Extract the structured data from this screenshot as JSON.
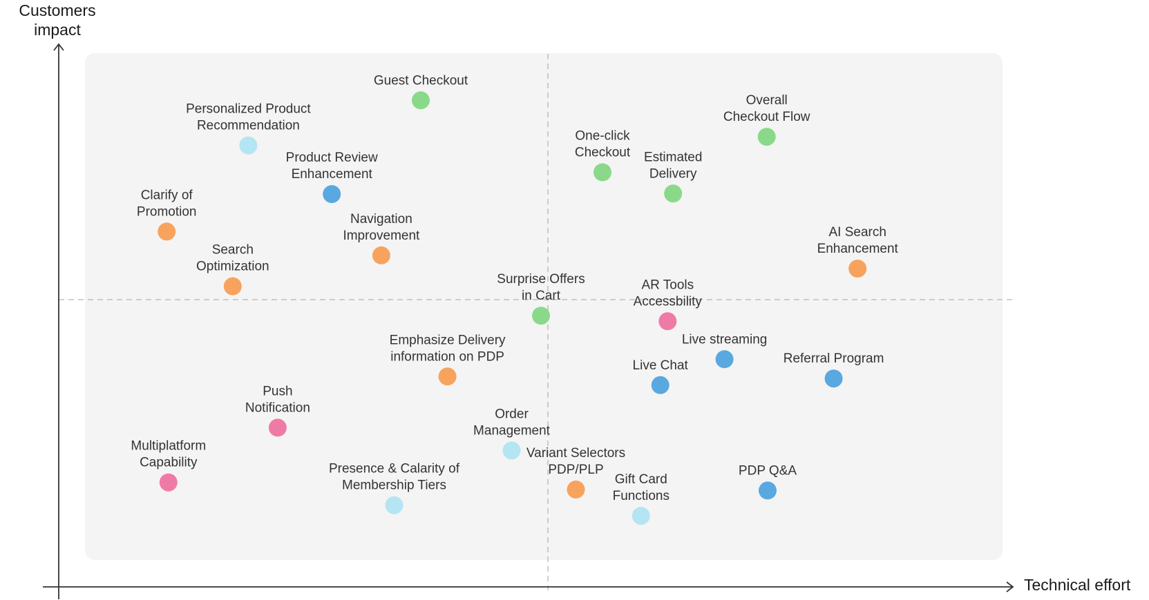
{
  "colors": {
    "green": "#8ad98a",
    "light_blue": "#b4e5f2",
    "blue": "#5aa8e0",
    "orange": "#f7a35e",
    "pink": "#f07aa6",
    "panel": "#f4f4f4",
    "axis": "#333333",
    "divider": "#b5b5b5"
  },
  "chart_data": {
    "type": "scatter",
    "xlabel": "Technical effort",
    "ylabel": [
      "Customers",
      "impact"
    ],
    "xlim": [
      0,
      100
    ],
    "ylim": [
      0,
      100
    ],
    "grid": false,
    "points": [
      {
        "name": "Guest Checkout",
        "lines": [
          "Guest Checkout"
        ],
        "x": 36.6,
        "y": 90.7,
        "color": "green"
      },
      {
        "name": "Personalized Product Recommendation",
        "lines": [
          "Personalized Product",
          "Recommendation"
        ],
        "x": 17.8,
        "y": 81.8,
        "color": "light_blue"
      },
      {
        "name": "Product Review Enhancement",
        "lines": [
          "Product Review",
          "Enhancement"
        ],
        "x": 26.9,
        "y": 72.2,
        "color": "blue"
      },
      {
        "name": "Clarify of Promotion",
        "lines": [
          "Clarify of",
          "Promotion"
        ],
        "x": 8.9,
        "y": 64.8,
        "color": "orange"
      },
      {
        "name": "Navigation Improvement",
        "lines": [
          "Navigation",
          "Improvement"
        ],
        "x": 32.3,
        "y": 60.1,
        "color": "orange"
      },
      {
        "name": "Search Optimization",
        "lines": [
          "Search",
          "Optimization"
        ],
        "x": 16.1,
        "y": 54.0,
        "color": "orange"
      },
      {
        "name": "One-click Checkout",
        "lines": [
          "One-click",
          "Checkout"
        ],
        "x": 56.4,
        "y": 76.5,
        "color": "green"
      },
      {
        "name": "Estimated Delivery",
        "lines": [
          "Estimated",
          "Delivery"
        ],
        "x": 64.1,
        "y": 72.3,
        "color": "green"
      },
      {
        "name": "Overall Checkout Flow",
        "lines": [
          "Overall",
          "Checkout Flow"
        ],
        "x": 74.3,
        "y": 83.5,
        "color": "green"
      },
      {
        "name": "AI Search Enhancement",
        "lines": [
          "AI Search",
          "Enhancement"
        ],
        "x": 84.2,
        "y": 57.5,
        "color": "orange"
      },
      {
        "name": "Surprise Offers in Cart",
        "lines": [
          "Surprise Offers",
          "in Cart"
        ],
        "x": 49.7,
        "y": 48.2,
        "color": "green"
      },
      {
        "name": "AR Tools Accessbility",
        "lines": [
          "AR Tools",
          "Accessbility"
        ],
        "x": 63.5,
        "y": 47.1,
        "color": "pink"
      },
      {
        "name": "Live streaming",
        "lines": [
          "Live streaming"
        ],
        "x": 69.7,
        "y": 39.6,
        "color": "blue"
      },
      {
        "name": "Referral Program",
        "lines": [
          "Referral Program"
        ],
        "x": 81.6,
        "y": 35.8,
        "color": "blue"
      },
      {
        "name": "Live Chat",
        "lines": [
          "Live Chat"
        ],
        "x": 62.7,
        "y": 34.5,
        "color": "blue"
      },
      {
        "name": "Emphasize Delivery information on PDP",
        "lines": [
          "Emphasize Delivery",
          "information on PDP"
        ],
        "x": 39.5,
        "y": 36.2,
        "color": "orange"
      },
      {
        "name": "Push Notification",
        "lines": [
          "Push",
          "Notification"
        ],
        "x": 21.0,
        "y": 26.1,
        "color": "pink"
      },
      {
        "name": "Order Management",
        "lines": [
          "Order",
          "Management"
        ],
        "x": 46.5,
        "y": 21.6,
        "color": "light_blue"
      },
      {
        "name": "Multiplatform Capability",
        "lines": [
          "Multiplatform",
          "Capability"
        ],
        "x": 9.1,
        "y": 15.3,
        "color": "pink"
      },
      {
        "name": "Presence & Calarity of Membership Tiers",
        "lines": [
          "Presence & Calarity of",
          "Membership Tiers"
        ],
        "x": 33.7,
        "y": 10.8,
        "color": "light_blue"
      },
      {
        "name": "Variant Selectors PDP/PLP",
        "lines": [
          "Variant Selectors",
          "PDP/PLP"
        ],
        "x": 53.5,
        "y": 13.9,
        "color": "orange"
      },
      {
        "name": "Gift Card Functions",
        "lines": [
          "Gift Card",
          "Functions"
        ],
        "x": 60.6,
        "y": 8.7,
        "color": "light_blue"
      },
      {
        "name": "PDP Q&A",
        "lines": [
          "PDP Q&A"
        ],
        "x": 74.4,
        "y": 13.7,
        "color": "blue"
      }
    ]
  }
}
